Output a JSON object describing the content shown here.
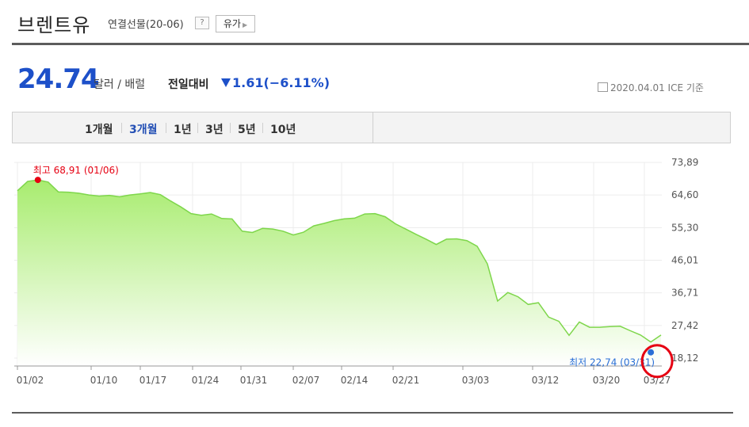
{
  "header": {
    "title": "브렌트유",
    "subtitle": "연결선물(20-06)",
    "help_label": "?",
    "related_label": "유가"
  },
  "quote": {
    "price": "24.74",
    "unit": "달러 / 배럴",
    "change_label": "전일대비",
    "change_value": "1.61(−6.11%)",
    "ref_date": "2020.04.01",
    "ref_source": "ICE 기준",
    "down_color": "#1d50c9"
  },
  "tabs": [
    {
      "label": "1개월",
      "active": false
    },
    {
      "label": "3개월",
      "active": true
    },
    {
      "label": "1년",
      "active": false
    },
    {
      "label": "3년",
      "active": false
    },
    {
      "label": "5년",
      "active": false
    },
    {
      "label": "10년",
      "active": false
    }
  ],
  "chart_data": {
    "type": "area",
    "x_tick_labels": [
      "01/02",
      "01/10",
      "01/17",
      "01/24",
      "01/31",
      "02/07",
      "02/14",
      "02/21",
      "03/03",
      "03/12",
      "03/20",
      "03/27"
    ],
    "y_tick_labels": [
      "73,89",
      "64,60",
      "55,30",
      "46,01",
      "36,71",
      "27,42",
      "18,12"
    ],
    "ylim": [
      18.12,
      73.89
    ],
    "y": [
      65.8,
      68.5,
      68.9,
      68.3,
      65.5,
      65.4,
      65.1,
      64.6,
      64.3,
      64.5,
      64.1,
      64.6,
      64.9,
      65.3,
      64.7,
      62.9,
      61.2,
      59.3,
      58.8,
      59.2,
      57.9,
      57.8,
      54.3,
      53.9,
      55.1,
      54.9,
      54.3,
      53.2,
      54.0,
      55.8,
      56.5,
      57.3,
      57.8,
      58.0,
      59.2,
      59.3,
      58.4,
      56.4,
      54.9,
      53.4,
      52.0,
      50.5,
      52.0,
      52.1,
      51.6,
      50.0,
      45.0,
      34.4,
      36.8,
      35.6,
      33.4,
      33.9,
      29.8,
      28.6,
      24.6,
      28.4,
      26.9,
      26.9,
      27.1,
      27.2,
      25.9,
      24.7,
      22.7,
      24.7
    ],
    "high_label": "최고 68,91 (01/06)",
    "low_label": "최저 22,74 (03/31)",
    "line_color": "#7ed64b",
    "fill_top": "#a8ec6f",
    "fill_bottom": "#ffffff",
    "high_color": "#e60012",
    "low_color": "#2a6fd6",
    "annotation_color": "#e60012"
  }
}
